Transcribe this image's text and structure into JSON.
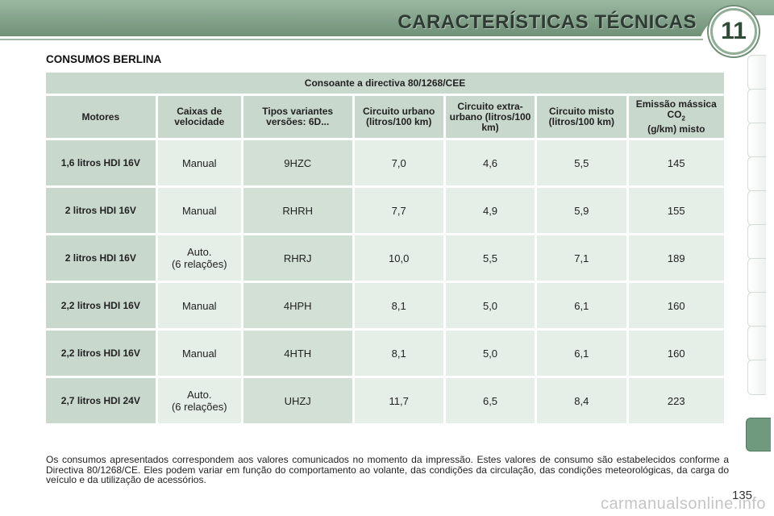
{
  "header": {
    "title": "CARACTERÍSTICAS TÉCNICAS",
    "chapter_number": "11",
    "accent_color": "#7f9f86"
  },
  "section_title": "CONSUMOS BERLINA",
  "table": {
    "directive": "Consoante a directiva 80/1268/CEE",
    "columns": {
      "motores": "Motores",
      "caixas": "Caixas de velocidade",
      "tipos": "Tipos variantes versões: 6D...",
      "urbano": "Circuito urbano (litros/100 km)",
      "extra_urbano": "Circuito extra-urbano (litros/100 km)",
      "misto": "Circuito misto (litros/100 km)",
      "co2": "Emissão mássica CO",
      "co2_sub": "2",
      "co2_unit": "(g/km) misto"
    },
    "rows": [
      {
        "motor": "1,6 litros HDI 16V",
        "caixa": "Manual",
        "tipo": "9HZC",
        "urbano": "7,0",
        "extra": "4,6",
        "misto": "5,5",
        "co2": "145"
      },
      {
        "motor": "2 litros HDI 16V",
        "caixa": "Manual",
        "tipo": "RHRH",
        "urbano": "7,7",
        "extra": "4,9",
        "misto": "5,9",
        "co2": "155"
      },
      {
        "motor": "2 litros HDI 16V",
        "caixa": "Auto.",
        "caixa2": "(6 relações)",
        "tipo": "RHRJ",
        "urbano": "10,0",
        "extra": "5,5",
        "misto": "7,1",
        "co2": "189"
      },
      {
        "motor": "2,2 litros HDI 16V",
        "caixa": "Manual",
        "tipo": "4HPH",
        "urbano": "8,1",
        "extra": "5,0",
        "misto": "6,1",
        "co2": "160"
      },
      {
        "motor": "2,2 litros HDI 16V",
        "caixa": "Manual",
        "tipo": "4HTH",
        "urbano": "8,1",
        "extra": "5,0",
        "misto": "6,1",
        "co2": "160"
      },
      {
        "motor": "2,7 litros HDI 24V",
        "caixa": "Auto.",
        "caixa2": "(6 relações)",
        "tipo": "UHZJ",
        "urbano": "11,7",
        "extra": "6,5",
        "misto": "8,4",
        "co2": "223"
      }
    ]
  },
  "footnote": "Os consumos apresentados correspondem aos valores comunicados no momento da impressão. Estes valores de consumo são estabelecidos conforme a Directiva 80/1268/CE. Eles podem variar em função do comportamento ao volante, das condições da circulação, das condições meteorológicas, da carga do veículo e da utilização de acessórios.",
  "page_number": "135",
  "watermark": "carmanualsonline.info"
}
